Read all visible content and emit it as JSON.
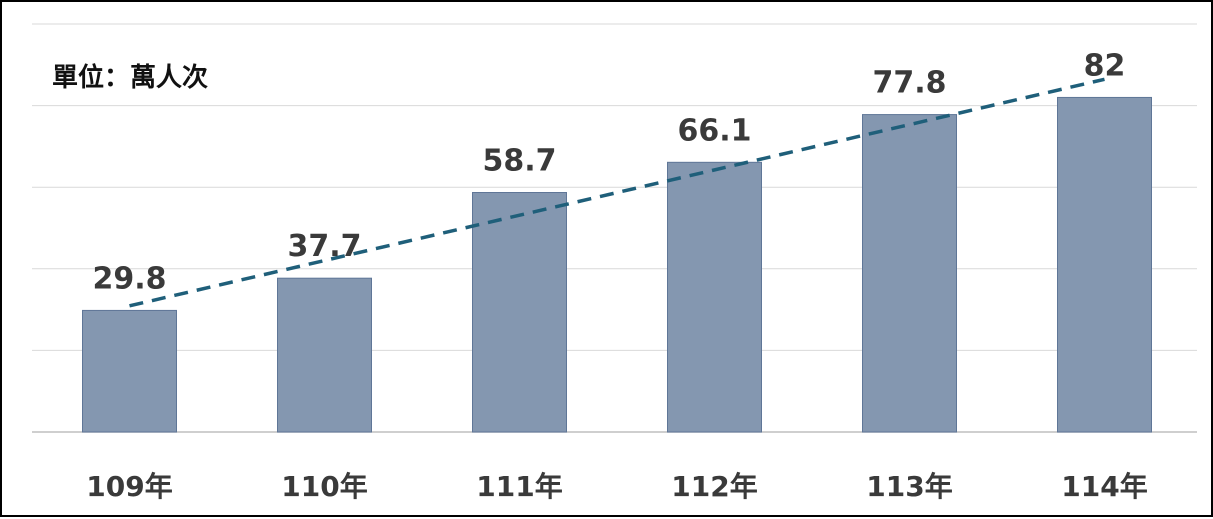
{
  "chart_data": {
    "type": "bar",
    "unit_label": "單位：萬人次",
    "categories": [
      "109年",
      "110年",
      "111年",
      "112年",
      "113年",
      "114年"
    ],
    "values": [
      29.8,
      37.7,
      58.7,
      66.1,
      77.8,
      82
    ],
    "value_labels": [
      "29.8",
      "37.7",
      "58.7",
      "66.1",
      "77.8",
      "82"
    ],
    "ylim": [
      0,
      100
    ],
    "grid": true,
    "trendline": {
      "style": "dashed",
      "type": "linear"
    },
    "colors": {
      "bar": "#8497b0",
      "bar_edge": "#5f7697",
      "trendline": "#1f5f7a",
      "grid": "#d9d9d9",
      "axis": "#bfbfbf"
    }
  }
}
